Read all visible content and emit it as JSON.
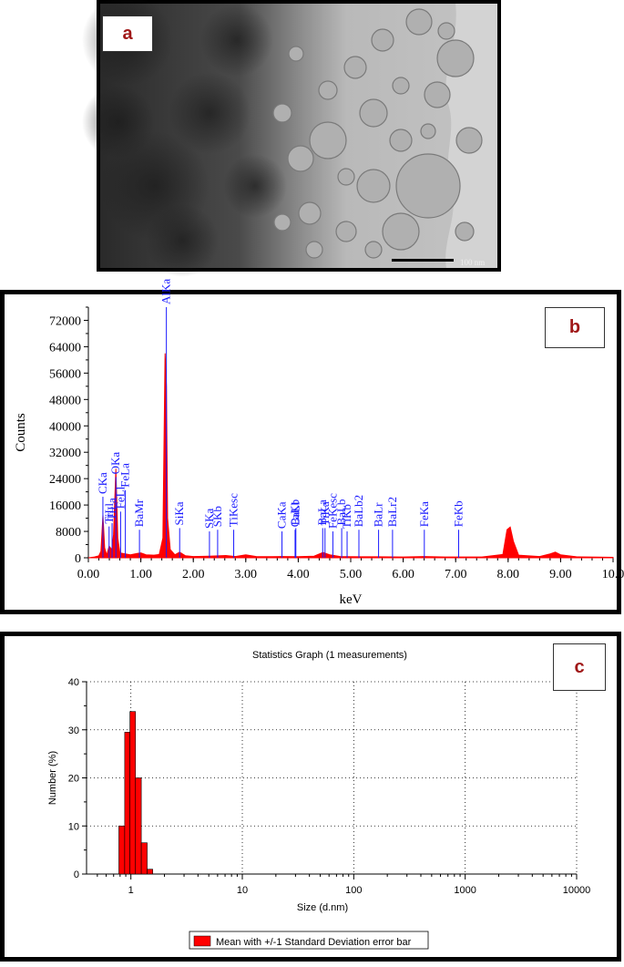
{
  "panels": {
    "a": {
      "label": "a",
      "scale_text": "100 nm"
    },
    "b": {
      "label": "b"
    },
    "c": {
      "label": "c"
    }
  },
  "chart_data": [
    {
      "type": "line",
      "panel": "b",
      "title": "",
      "xlabel": "keV",
      "ylabel": "Counts",
      "xlim": [
        0,
        10
      ],
      "ylim": [
        0,
        76000
      ],
      "xticks": [
        "0.00",
        "1.00",
        "2.00",
        "3.00",
        "4.00",
        "5.00",
        "6.00",
        "7.00",
        "8.00",
        "9.00",
        "10.0"
      ],
      "yticks": [
        "0",
        "8000",
        "16000",
        "24000",
        "32000",
        "40000",
        "48000",
        "56000",
        "64000",
        "72000"
      ],
      "series": [
        {
          "color": "#ff0000",
          "points": [
            [
              0,
              0
            ],
            [
              0.1,
              200
            ],
            [
              0.2,
              600
            ],
            [
              0.24,
              2000
            ],
            [
              0.277,
              13000
            ],
            [
              0.31,
              3000
            ],
            [
              0.35,
              800
            ],
            [
              0.395,
              3500
            ],
            [
              0.45,
              2500
            ],
            [
              0.48,
              7000
            ],
            [
              0.525,
              27000
            ],
            [
              0.56,
              6000
            ],
            [
              0.6,
              1500
            ],
            [
              0.705,
              1200
            ],
            [
              0.8,
              900
            ],
            [
              0.93,
              1300
            ],
            [
              1.0,
              1500
            ],
            [
              1.1,
              900
            ],
            [
              1.25,
              800
            ],
            [
              1.35,
              1000
            ],
            [
              1.42,
              6000
            ],
            [
              1.462,
              62000
            ],
            [
              1.487,
              52000
            ],
            [
              1.51,
              12000
            ],
            [
              1.56,
              2500
            ],
            [
              1.65,
              900
            ],
            [
              1.74,
              1700
            ],
            [
              1.85,
              600
            ],
            [
              2.0,
              400
            ],
            [
              2.3,
              500
            ],
            [
              2.62,
              700
            ],
            [
              2.8,
              400
            ],
            [
              3.0,
              900
            ],
            [
              3.2,
              400
            ],
            [
              3.5,
              350
            ],
            [
              3.7,
              400
            ],
            [
              4.0,
              350
            ],
            [
              4.3,
              500
            ],
            [
              4.47,
              1600
            ],
            [
              4.6,
              900
            ],
            [
              4.8,
              400
            ],
            [
              5.2,
              300
            ],
            [
              5.5,
              300
            ],
            [
              6.0,
              250
            ],
            [
              6.4,
              400
            ],
            [
              6.8,
              250
            ],
            [
              7.5,
              250
            ],
            [
              7.9,
              1000
            ],
            [
              7.98,
              8500
            ],
            [
              8.04,
              9300
            ],
            [
              8.1,
              5000
            ],
            [
              8.2,
              800
            ],
            [
              8.6,
              400
            ],
            [
              8.8,
              1200
            ],
            [
              8.9,
              1700
            ],
            [
              9.0,
              900
            ],
            [
              9.3,
              300
            ],
            [
              9.7,
              200
            ],
            [
              10.0,
              150
            ]
          ]
        }
      ],
      "annotations": [
        {
          "text": "CKa",
          "x": 0.277,
          "top": 18500
        },
        {
          "text": "TiLl",
          "x": 0.395,
          "top": 9500
        },
        {
          "text": "TiLa",
          "x": 0.452,
          "top": 10500
        },
        {
          "text": "OKa",
          "x": 0.525,
          "top": 24500
        },
        {
          "text": "FeLa",
          "x": 0.705,
          "top": 20500
        },
        {
          "text": "FeLl",
          "x": 0.615,
          "top": 14000
        },
        {
          "text": "BaMr",
          "x": 0.974,
          "top": 8500
        },
        {
          "text": "AlKa",
          "x": 1.487,
          "top": 76000
        },
        {
          "text": "SiKa",
          "x": 1.74,
          "top": 9000
        },
        {
          "text": "SKa",
          "x": 2.308,
          "top": 8000
        },
        {
          "text": "SKb",
          "x": 2.464,
          "top": 8500
        },
        {
          "text": "TiKesc",
          "x": 2.77,
          "top": 8500
        },
        {
          "text": "CaKa",
          "x": 3.69,
          "top": 8000
        },
        {
          "text": "CaKb",
          "x": 3.94,
          "top": 8500
        },
        {
          "text": "BaLl",
          "x": 3.954,
          "top": 9000
        },
        {
          "text": "TiKa",
          "x": 4.51,
          "top": 9000
        },
        {
          "text": "BaLa",
          "x": 4.466,
          "top": 9000
        },
        {
          "text": "FeKesc",
          "x": 4.66,
          "top": 8000
        },
        {
          "text": "BaLb",
          "x": 4.828,
          "top": 9000
        },
        {
          "text": "TiKb",
          "x": 4.931,
          "top": 8000
        },
        {
          "text": "BaLb2",
          "x": 5.156,
          "top": 8500
        },
        {
          "text": "BaLr",
          "x": 5.531,
          "top": 8500
        },
        {
          "text": "BaLr2",
          "x": 5.797,
          "top": 8500
        },
        {
          "text": "FeKa",
          "x": 6.403,
          "top": 8500
        },
        {
          "text": "FeKb",
          "x": 7.057,
          "top": 8500
        }
      ]
    },
    {
      "type": "bar",
      "panel": "c",
      "title": "Statistics Graph (1 measurements)",
      "xlabel": "Size (d.nm)",
      "ylabel": "Number (%)",
      "x_scale": "log",
      "xlim": [
        0.4,
        10000
      ],
      "ylim": [
        0,
        40
      ],
      "xticks": [
        "1",
        "10",
        "100",
        "1000",
        "10000"
      ],
      "yticks": [
        "0",
        "10",
        "20",
        "30",
        "40"
      ],
      "grid": true,
      "legend": "Mean with +/-1 Standard Deviation error bar",
      "bars": [
        {
          "left": 0.78,
          "right": 0.88,
          "value": 10
        },
        {
          "left": 0.88,
          "right": 0.98,
          "value": 29.5
        },
        {
          "left": 0.98,
          "right": 1.1,
          "value": 33.8
        },
        {
          "left": 1.1,
          "right": 1.24,
          "value": 20
        },
        {
          "left": 1.24,
          "right": 1.4,
          "value": 6.5
        },
        {
          "left": 1.4,
          "right": 1.57,
          "value": 1
        }
      ],
      "color": "#ff0000"
    }
  ]
}
